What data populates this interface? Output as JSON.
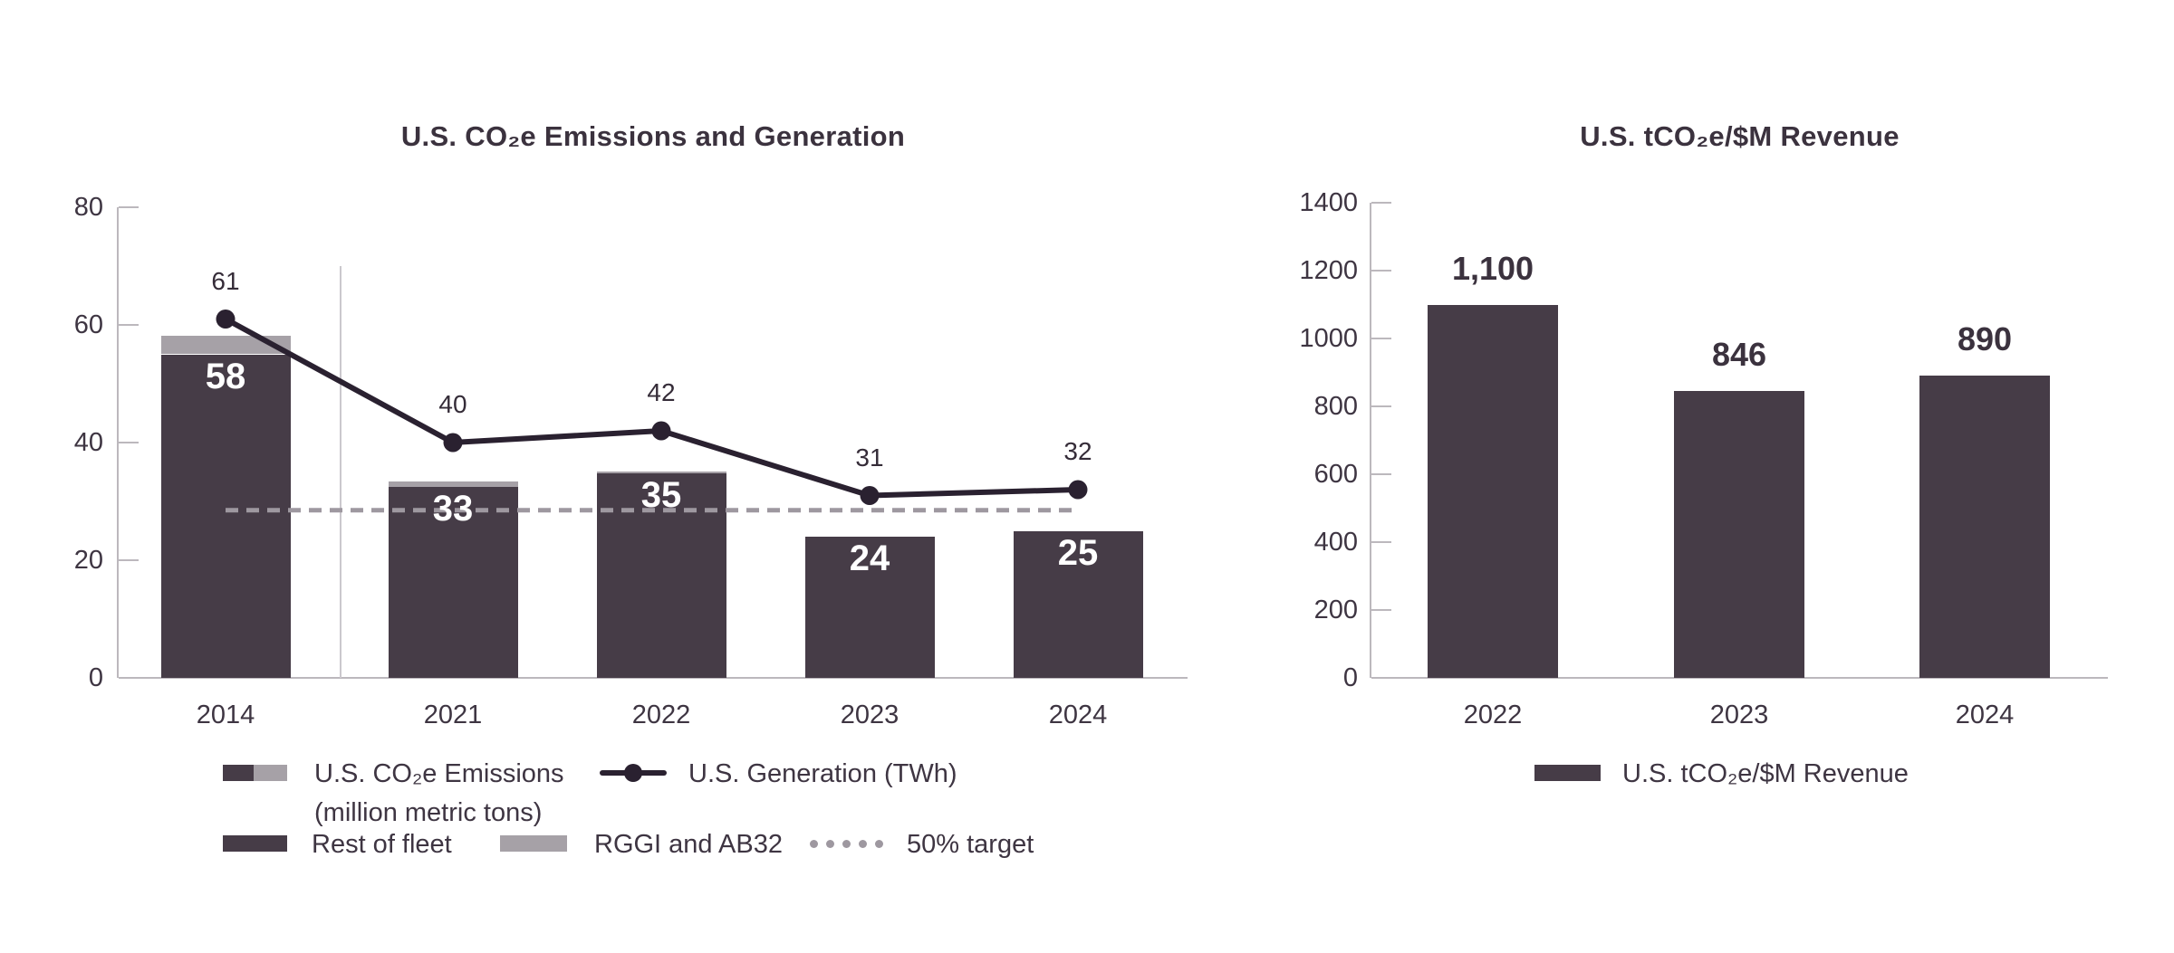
{
  "colors": {
    "background": "#ffffff",
    "bar_dark": "#463c47",
    "bar_gray": "#a6a1a7",
    "line": "#2a2130",
    "target": "#9e98a0",
    "axis": "#bcb8bd",
    "separator": "#cbc8cd",
    "text": "#3e3542",
    "label_on_bar": "#ffffff"
  },
  "chart_data": [
    {
      "type": "bar+line",
      "title": "U.S. CO₂e Emissions and Generation",
      "categories": [
        "2014",
        "2021",
        "2022",
        "2023",
        "2024"
      ],
      "ylim": [
        0,
        80
      ],
      "yticks": [
        0,
        20,
        40,
        60,
        80
      ],
      "grid": "off",
      "axis_break_after": "2014",
      "series": [
        {
          "name": "Rest of fleet",
          "type": "bar",
          "stack": "emissions",
          "values": [
            55.0,
            32.4,
            34.7,
            24,
            25
          ]
        },
        {
          "name": "RGGI and AB32",
          "type": "bar",
          "stack": "emissions",
          "values": [
            3.2,
            1.0,
            0.4,
            0,
            0
          ]
        },
        {
          "name": "U.S. Generation (TWh)",
          "type": "line",
          "values": [
            61,
            40,
            42,
            31,
            32
          ],
          "point_labels": [
            "61",
            "40",
            "42",
            "31",
            "32"
          ]
        }
      ],
      "bar_totals": [
        58,
        33,
        35,
        24,
        25
      ],
      "bar_labels": [
        "58",
        "33",
        "35",
        "24",
        "25"
      ],
      "target_line": {
        "value": 28.5,
        "label": "50% target"
      },
      "legend": {
        "emissions_label_line1": "U.S. CO₂e Emissions",
        "emissions_label_line2": "(million metric tons)",
        "generation_label": "U.S. Generation (TWh)",
        "rest_label": "Rest of fleet",
        "rggi_label": "RGGI and AB32",
        "target_label": "50% target"
      }
    },
    {
      "type": "bar",
      "title": "U.S. tCO₂e/$M Revenue",
      "categories": [
        "2022",
        "2023",
        "2024"
      ],
      "values": [
        1100,
        846,
        890
      ],
      "value_labels": [
        "1,100",
        "846",
        "890"
      ],
      "ylim": [
        0,
        1400
      ],
      "yticks": [
        0,
        200,
        400,
        600,
        800,
        1000,
        1200,
        1400
      ],
      "grid": "off",
      "legend": {
        "series_label": "U.S. tCO₂e/$M Revenue"
      }
    }
  ]
}
